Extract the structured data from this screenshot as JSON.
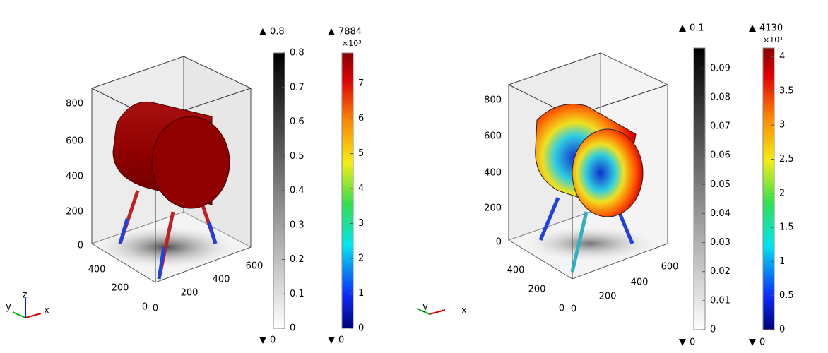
{
  "panels": [
    {
      "z_ticks": [
        0,
        200,
        400,
        600,
        800
      ],
      "x_ticks": [
        0,
        200,
        400,
        600
      ],
      "y_ticks": [
        0,
        200,
        400
      ],
      "colorbars": [
        {
          "max": 0.8,
          "min": 0,
          "range": [
            0,
            0.8
          ],
          "ticks": [
            0,
            0.1,
            0.2,
            0.3,
            0.4,
            0.5,
            0.6,
            0.7,
            0.8
          ],
          "colormap": "gray"
        },
        {
          "max": 7884,
          "min": 0,
          "exponent": "×10³",
          "range": [
            0,
            7.884
          ],
          "ticks": [
            0,
            1,
            2,
            3,
            4,
            5,
            6,
            7
          ],
          "colormap": "rainbow"
        }
      ],
      "triad": {
        "x": "x",
        "y": "y",
        "z": "z"
      }
    },
    {
      "z_ticks": [
        0,
        200,
        400,
        600,
        800
      ],
      "x_ticks": [
        0,
        200,
        400,
        600
      ],
      "y_ticks": [
        0,
        200,
        400
      ],
      "colorbars": [
        {
          "max": 0.1,
          "min": 0,
          "range": [
            0,
            0.097
          ],
          "ticks": [
            0,
            0.01,
            0.02,
            0.03,
            0.04,
            0.05,
            0.06,
            0.07,
            0.08,
            0.09
          ],
          "colormap": "gray"
        },
        {
          "max": 4130,
          "min": 0,
          "exponent": "×10³",
          "range": [
            0,
            4.13
          ],
          "ticks": [
            0,
            0.5,
            1,
            1.5,
            2,
            2.5,
            3,
            3.5,
            4
          ],
          "colormap": "rainbow"
        }
      ],
      "triad": {
        "x": "x",
        "y": "y"
      }
    }
  ]
}
